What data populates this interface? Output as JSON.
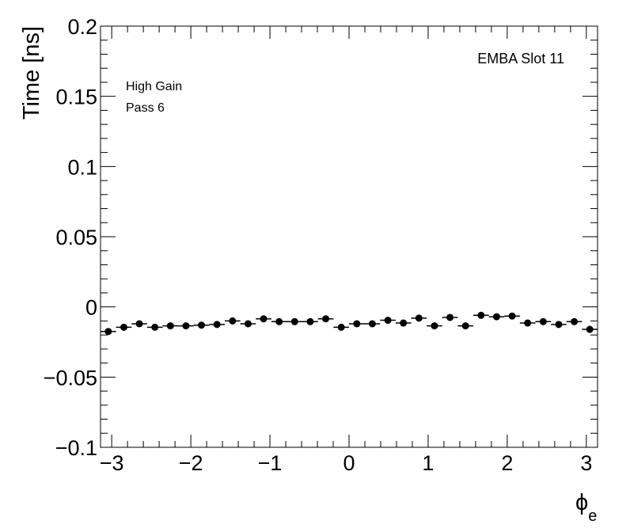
{
  "chart_data": {
    "type": "scatter",
    "title": "",
    "xlabel": "ϕ",
    "xlabel_sub": "e",
    "ylabel": "Time [ns]",
    "xlim": [
      -3.1416,
      3.1416
    ],
    "ylim": [
      -0.1,
      0.2
    ],
    "xticks": [
      {
        "value": -3,
        "label": "−3"
      },
      {
        "value": -2,
        "label": "−2"
      },
      {
        "value": -1,
        "label": "−1"
      },
      {
        "value": 0,
        "label": "0"
      },
      {
        "value": 1,
        "label": "1"
      },
      {
        "value": 2,
        "label": "2"
      },
      {
        "value": 3,
        "label": "3"
      }
    ],
    "yticks": [
      {
        "value": -0.1,
        "label": "−0.1"
      },
      {
        "value": -0.05,
        "label": "−0.05"
      },
      {
        "value": 0,
        "label": "0"
      },
      {
        "value": 0.05,
        "label": "0.05"
      },
      {
        "value": 0.1,
        "label": "0.1"
      },
      {
        "value": 0.15,
        "label": "0.15"
      },
      {
        "value": 0.2,
        "label": "0.2"
      }
    ],
    "grid": false,
    "annotations": {
      "slot": "EMBA Slot 11",
      "gain": "High Gain",
      "pass": "Pass 6"
    },
    "series": [
      {
        "marker": "circle",
        "color": "#000000",
        "x_half_width": 0.0982,
        "x": [
          -3.0434,
          -2.8471,
          -2.6507,
          -2.4544,
          -2.258,
          -2.0617,
          -1.8653,
          -1.669,
          -1.4726,
          -1.2763,
          -1.0799,
          -0.8836,
          -0.6872,
          -0.4909,
          -0.2945,
          -0.0982,
          0.0982,
          0.2945,
          0.4909,
          0.6872,
          0.8836,
          1.0799,
          1.2763,
          1.4726,
          1.669,
          1.8653,
          2.0617,
          2.258,
          2.4544,
          2.6507,
          2.8471,
          3.0434
        ],
        "y": [
          -0.0175,
          -0.0145,
          -0.012,
          -0.0145,
          -0.0135,
          -0.0135,
          -0.013,
          -0.0125,
          -0.01,
          -0.012,
          -0.0085,
          -0.0105,
          -0.0105,
          -0.0105,
          -0.0085,
          -0.0145,
          -0.012,
          -0.012,
          -0.0095,
          -0.0115,
          -0.008,
          -0.0135,
          -0.0075,
          -0.0135,
          -0.006,
          -0.007,
          -0.0065,
          -0.0115,
          -0.0105,
          -0.0125,
          -0.0105,
          -0.016
        ]
      }
    ]
  }
}
